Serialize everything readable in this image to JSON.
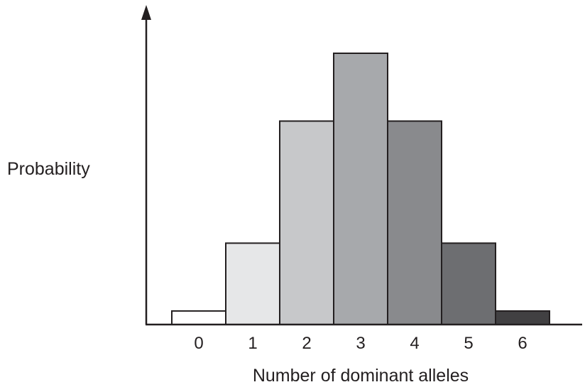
{
  "chart_data": {
    "type": "bar",
    "title": "",
    "xlabel": "Number of dominant alleles",
    "ylabel": "Probability",
    "categories": [
      "0",
      "1",
      "2",
      "3",
      "4",
      "5",
      "6"
    ],
    "values": [
      1,
      6,
      15,
      20,
      15,
      6,
      1
    ],
    "ylim": [
      0,
      20.5
    ],
    "bar_colors": [
      "#ffffff",
      "#e6e7e8",
      "#c7c8ca",
      "#a7a9ac",
      "#898a8d",
      "#6d6e71",
      "#414042"
    ],
    "grid": false,
    "legend": "none",
    "y_ticks_shown": false
  }
}
